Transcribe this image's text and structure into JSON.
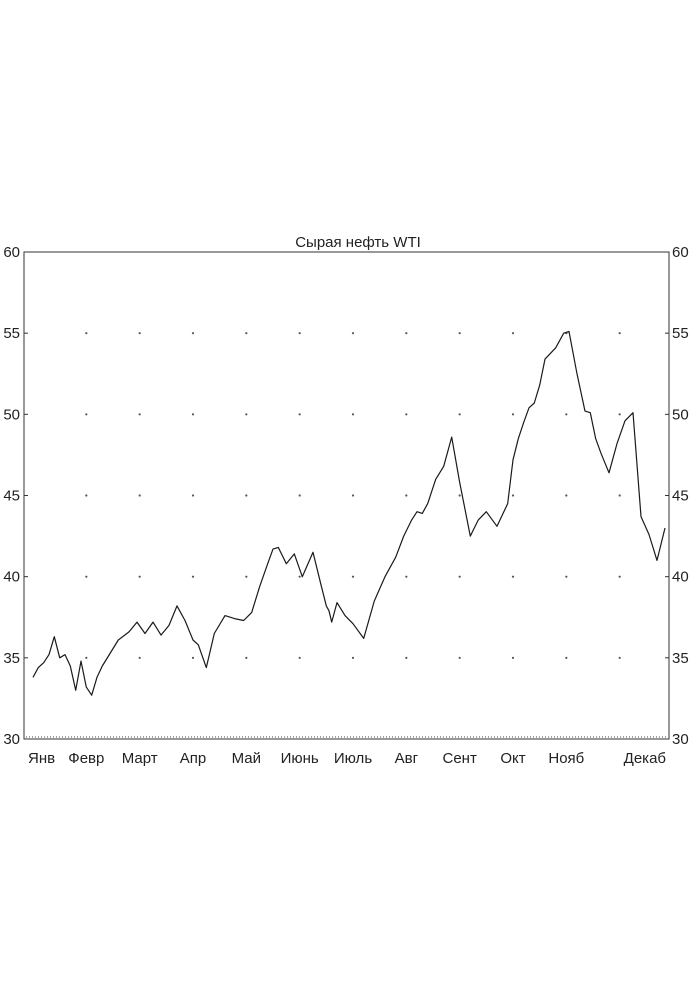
{
  "chart_data": {
    "type": "line",
    "title": "Сырая нефть WTI",
    "xlabel": "",
    "ylabel": "",
    "ylim": [
      30,
      60
    ],
    "yticks": [
      "30",
      "35",
      "40",
      "45",
      "50",
      "55",
      "60"
    ],
    "y_axis_both_sides": true,
    "grid": "dotted",
    "months": [
      "Янв",
      "Февр",
      "Март",
      "Апр",
      "Май",
      "Июнь",
      "Июль",
      "Авг",
      "Сент",
      "Окт",
      "Нояб",
      "Декаб"
    ],
    "x_month_positions": [
      0.0,
      1.0,
      2.0,
      3.0,
      4.0,
      5.0,
      6.0,
      7.0,
      8.0,
      9.0,
      10.0,
      11.0
    ],
    "series": [
      {
        "x": [
          0.0,
          0.1,
          0.2,
          0.3,
          0.4,
          0.5,
          0.6,
          0.7,
          0.8,
          0.9,
          1.0,
          1.1,
          1.2,
          1.3,
          1.45,
          1.6,
          1.8,
          1.95,
          2.1,
          2.25,
          2.4,
          2.55,
          2.7,
          2.85,
          3.0,
          3.1,
          3.25,
          3.4,
          3.6,
          3.8,
          3.95,
          4.1,
          4.25,
          4.4,
          4.5,
          4.6,
          4.75,
          4.9,
          5.05,
          5.25,
          5.4,
          5.5,
          5.55,
          5.6,
          5.7,
          5.85,
          6.0,
          6.2,
          6.4,
          6.6,
          6.8,
          6.95,
          7.1,
          7.2,
          7.3,
          7.4,
          7.55,
          7.7,
          7.85,
          8.0,
          8.2,
          8.35,
          8.5,
          8.7,
          8.9,
          9.0,
          9.1,
          9.2,
          9.3,
          9.4,
          9.5,
          9.6,
          9.8,
          9.95,
          10.05,
          10.2,
          10.35,
          10.45,
          10.55,
          10.65,
          10.8,
          10.95,
          11.1,
          11.25,
          11.4,
          11.55,
          11.7,
          11.85
        ],
        "y": [
          33.8,
          34.4,
          34.7,
          35.2,
          36.3,
          35.0,
          35.2,
          34.5,
          33.0,
          34.8,
          33.2,
          32.7,
          33.8,
          34.5,
          35.3,
          36.1,
          36.6,
          37.2,
          36.5,
          37.2,
          36.4,
          37.0,
          38.2,
          37.3,
          36.1,
          35.8,
          34.4,
          36.5,
          37.6,
          37.4,
          37.3,
          37.8,
          39.4,
          40.8,
          41.7,
          41.8,
          40.8,
          41.4,
          40.0,
          41.5,
          39.5,
          38.2,
          37.9,
          37.2,
          38.4,
          37.6,
          37.1,
          36.2,
          38.5,
          40.0,
          41.2,
          42.5,
          43.5,
          44.0,
          43.9,
          44.5,
          46.0,
          46.8,
          48.6,
          45.8,
          42.5,
          43.5,
          44.0,
          43.1,
          44.5,
          47.2,
          48.5,
          49.5,
          50.4,
          50.7,
          51.8,
          53.4,
          54.1,
          55.0,
          55.1,
          52.5,
          50.2,
          50.1,
          48.5,
          47.6,
          46.4,
          48.2,
          49.6,
          50.1,
          43.7,
          42.6,
          41.0,
          43.0
        ]
      }
    ]
  }
}
